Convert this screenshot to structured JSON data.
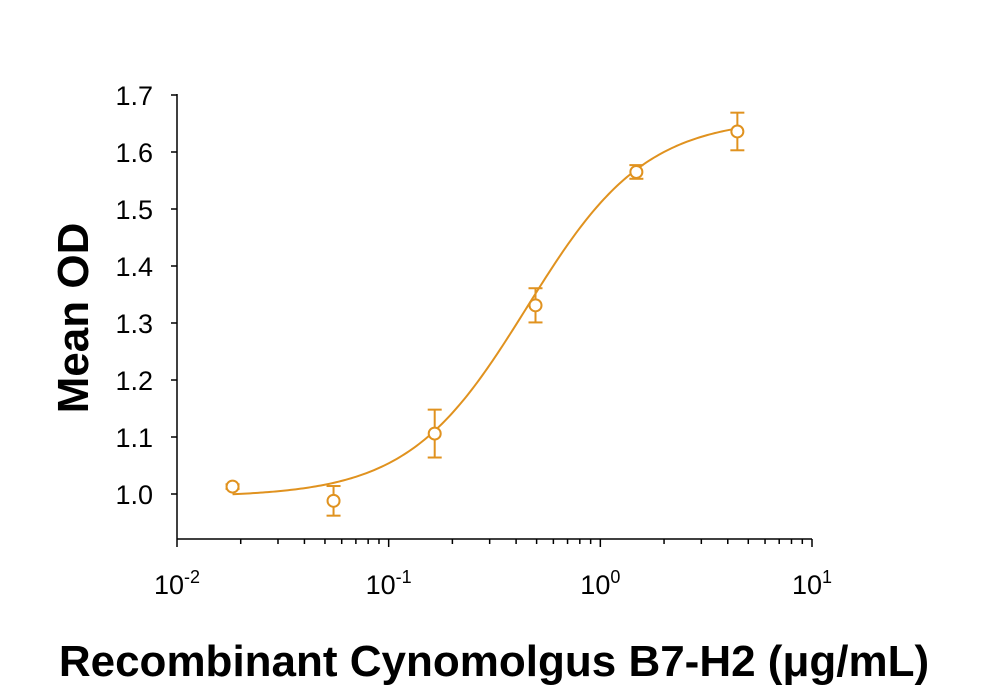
{
  "chart_data": {
    "type": "scatter",
    "title": "",
    "xlabel": "Recombinant Cynomolgus B7-H2 (μg/mL)",
    "ylabel": "Mean OD",
    "xscale": "log",
    "xlim": [
      0.01,
      10
    ],
    "ylim": [
      0.95,
      1.7
    ],
    "grid": false,
    "legend": "none",
    "color": "#E0921F",
    "xticks": [
      {
        "value": 0.01,
        "base": "10",
        "exp": "-2"
      },
      {
        "value": 0.1,
        "base": "10",
        "exp": "-1"
      },
      {
        "value": 1,
        "base": "10",
        "exp": "0"
      },
      {
        "value": 10,
        "base": "10",
        "exp": "1"
      }
    ],
    "yticks": [
      1.0,
      1.1,
      1.2,
      1.3,
      1.4,
      1.5,
      1.6,
      1.7
    ],
    "ytick_labels": [
      "1.0",
      "1.1",
      "1.2",
      "1.3",
      "1.4",
      "1.5",
      "1.6",
      "1.7"
    ],
    "series": [
      {
        "points": [
          {
            "x": 0.0183,
            "y": 1.013,
            "err": 0.004
          },
          {
            "x": 0.0549,
            "y": 0.988,
            "err": 0.026
          },
          {
            "x": 0.165,
            "y": 1.106,
            "err": 0.042
          },
          {
            "x": 0.494,
            "y": 1.331,
            "err": 0.03
          },
          {
            "x": 1.48,
            "y": 1.565,
            "err": 0.012
          },
          {
            "x": 4.44,
            "y": 1.636,
            "err": 0.033
          }
        ],
        "fit": {
          "model": "4PL",
          "bottom": 0.995,
          "top": 1.66,
          "ec50": 0.45,
          "hill": 1.55
        }
      }
    ]
  }
}
